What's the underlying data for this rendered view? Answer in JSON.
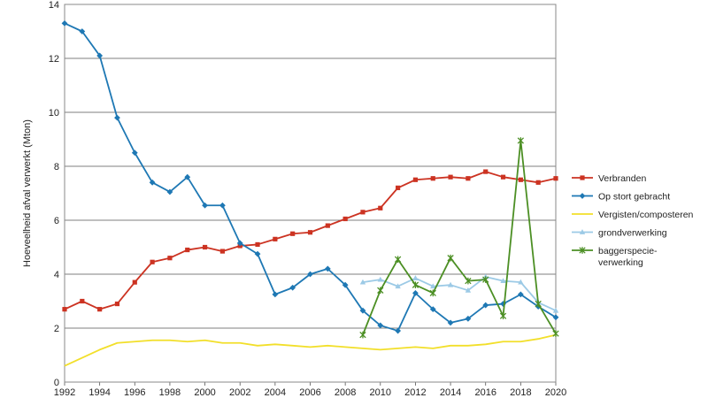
{
  "chart_data": {
    "type": "line",
    "ylabel": "Hoeveelheid afval verwerkt (Mton)",
    "ylim": [
      0,
      14
    ],
    "yticks": [
      "0",
      "2",
      "4",
      "6",
      "8",
      "10",
      "12",
      "14"
    ],
    "xlim": [
      1992,
      2020
    ],
    "xticks": [
      "1992",
      "1994",
      "1996",
      "1998",
      "2000",
      "2002",
      "2004",
      "2006",
      "2008",
      "2010",
      "2012",
      "2014",
      "2016",
      "2018",
      "2020"
    ],
    "grid": "horizontal",
    "legend_position": "right",
    "series": [
      {
        "name": "Verbranden",
        "color": "#cc3322",
        "marker": "square",
        "points": [
          [
            1992,
            2.7
          ],
          [
            1993,
            3.0
          ],
          [
            1994,
            2.7
          ],
          [
            1995,
            2.9
          ],
          [
            1996,
            3.7
          ],
          [
            1997,
            4.45
          ],
          [
            1998,
            4.6
          ],
          [
            1999,
            4.9
          ],
          [
            2000,
            5.0
          ],
          [
            2001,
            4.85
          ],
          [
            2002,
            5.05
          ],
          [
            2003,
            5.1
          ],
          [
            2004,
            5.3
          ],
          [
            2005,
            5.5
          ],
          [
            2006,
            5.55
          ],
          [
            2007,
            5.8
          ],
          [
            2008,
            6.05
          ],
          [
            2009,
            6.3
          ],
          [
            2010,
            6.45
          ],
          [
            2011,
            7.2
          ],
          [
            2012,
            7.5
          ],
          [
            2013,
            7.55
          ],
          [
            2014,
            7.6
          ],
          [
            2015,
            7.55
          ],
          [
            2016,
            7.8
          ],
          [
            2017,
            7.6
          ],
          [
            2018,
            7.5
          ],
          [
            2019,
            7.4
          ],
          [
            2020,
            7.55
          ]
        ]
      },
      {
        "name": "Op stort gebracht",
        "color": "#1e78b4",
        "marker": "diamond",
        "points": [
          [
            1992,
            13.3
          ],
          [
            1993,
            13.0
          ],
          [
            1994,
            12.1
          ],
          [
            1995,
            9.8
          ],
          [
            1996,
            8.5
          ],
          [
            1997,
            7.4
          ],
          [
            1998,
            7.05
          ],
          [
            1999,
            7.6
          ],
          [
            2000,
            6.55
          ],
          [
            2001,
            6.55
          ],
          [
            2002,
            5.15
          ],
          [
            2003,
            4.75
          ],
          [
            2004,
            3.25
          ],
          [
            2005,
            3.5
          ],
          [
            2006,
            4.0
          ],
          [
            2007,
            4.2
          ],
          [
            2008,
            3.6
          ],
          [
            2009,
            2.65
          ],
          [
            2010,
            2.1
          ],
          [
            2011,
            1.9
          ],
          [
            2012,
            3.3
          ],
          [
            2013,
            2.7
          ],
          [
            2014,
            2.2
          ],
          [
            2015,
            2.35
          ],
          [
            2016,
            2.85
          ],
          [
            2017,
            2.9
          ],
          [
            2018,
            3.25
          ],
          [
            2019,
            2.8
          ],
          [
            2020,
            2.4
          ]
        ]
      },
      {
        "name": "Vergisten/composteren",
        "color": "#f2df2a",
        "marker": "none",
        "points": [
          [
            1992,
            0.6
          ],
          [
            1993,
            0.9
          ],
          [
            1994,
            1.2
          ],
          [
            1995,
            1.45
          ],
          [
            1996,
            1.5
          ],
          [
            1997,
            1.55
          ],
          [
            1998,
            1.55
          ],
          [
            1999,
            1.5
          ],
          [
            2000,
            1.55
          ],
          [
            2001,
            1.45
          ],
          [
            2002,
            1.45
          ],
          [
            2003,
            1.35
          ],
          [
            2004,
            1.4
          ],
          [
            2005,
            1.35
          ],
          [
            2006,
            1.3
          ],
          [
            2007,
            1.35
          ],
          [
            2008,
            1.3
          ],
          [
            2009,
            1.25
          ],
          [
            2010,
            1.2
          ],
          [
            2011,
            1.25
          ],
          [
            2012,
            1.3
          ],
          [
            2013,
            1.25
          ],
          [
            2014,
            1.35
          ],
          [
            2015,
            1.35
          ],
          [
            2016,
            1.4
          ],
          [
            2017,
            1.5
          ],
          [
            2018,
            1.5
          ],
          [
            2019,
            1.6
          ],
          [
            2020,
            1.75
          ]
        ]
      },
      {
        "name": "grondverwerking",
        "color": "#9ccae6",
        "marker": "triangle",
        "points": [
          [
            2009,
            3.7
          ],
          [
            2010,
            3.8
          ],
          [
            2011,
            3.55
          ],
          [
            2012,
            3.85
          ],
          [
            2013,
            3.55
          ],
          [
            2014,
            3.6
          ],
          [
            2015,
            3.4
          ],
          [
            2016,
            3.9
          ],
          [
            2017,
            3.75
          ],
          [
            2018,
            3.7
          ],
          [
            2019,
            2.95
          ],
          [
            2020,
            2.65
          ]
        ]
      },
      {
        "name": "baggerspecie-verwerking",
        "legend_lines": [
          "baggerspecie-",
          "verwerking"
        ],
        "color": "#4c8f24",
        "marker": "star",
        "points": [
          [
            2009,
            1.75
          ],
          [
            2010,
            3.4
          ],
          [
            2011,
            4.55
          ],
          [
            2012,
            3.6
          ],
          [
            2013,
            3.3
          ],
          [
            2014,
            4.6
          ],
          [
            2015,
            3.75
          ],
          [
            2016,
            3.8
          ],
          [
            2017,
            2.45
          ],
          [
            2018,
            8.95
          ],
          [
            2019,
            2.9
          ],
          [
            2020,
            1.8
          ]
        ]
      }
    ]
  }
}
